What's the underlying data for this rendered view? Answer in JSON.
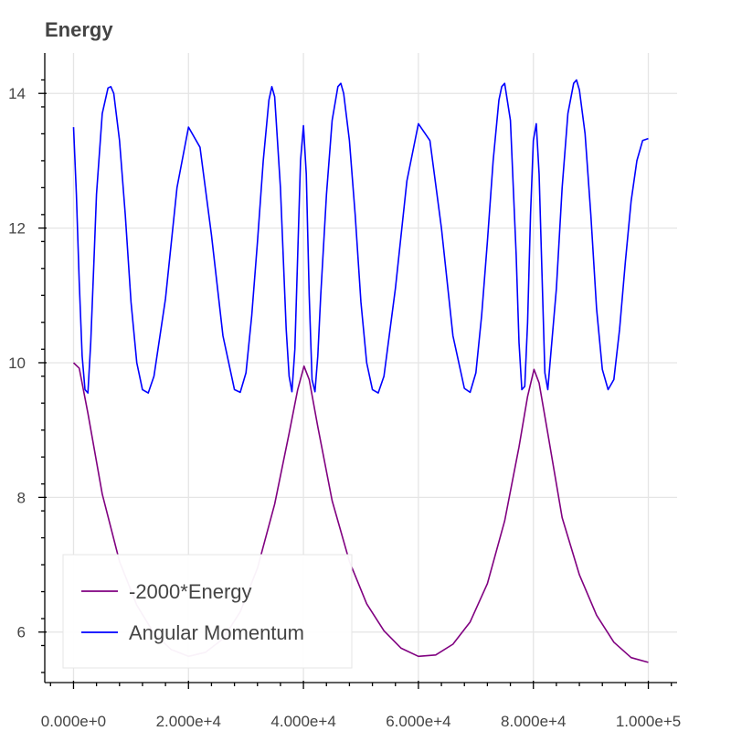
{
  "chart_data": {
    "type": "line",
    "title": "Energy",
    "xlabel": "",
    "ylabel": "",
    "xlim": [
      -5000,
      105000
    ],
    "ylim": [
      5.25,
      14.6
    ],
    "grid": true,
    "legend_placement": "bottom-left",
    "x_ticks": [
      0,
      20000,
      40000,
      60000,
      80000,
      100000
    ],
    "x_tick_labels": [
      "0.000e+0",
      "2.000e+4",
      "4.000e+4",
      "6.000e+4",
      "8.000e+4",
      "1.000e+5"
    ],
    "y_ticks": [
      6,
      8,
      10,
      12,
      14
    ],
    "y_tick_labels": [
      "6",
      "8",
      "10",
      "12",
      "14"
    ],
    "series": [
      {
        "name": "-2000*Energy",
        "color": "#800080",
        "x": [
          0,
          1000,
          2500,
          5000,
          8000,
          11000,
          14000,
          17000,
          20000,
          23000,
          26000,
          29000,
          32000,
          35000,
          37500,
          39000,
          40100,
          41000,
          42500,
          45000,
          48000,
          51000,
          54000,
          57000,
          60000,
          63000,
          66000,
          69000,
          72000,
          75000,
          77500,
          79000,
          80100,
          81000,
          82500,
          85000,
          88000,
          91000,
          94000,
          97000,
          100000
        ],
        "y": [
          10.0,
          9.92,
          9.25,
          8.05,
          7.05,
          6.4,
          5.98,
          5.74,
          5.64,
          5.7,
          5.9,
          6.3,
          6.95,
          7.9,
          8.95,
          9.6,
          9.95,
          9.75,
          9.05,
          7.95,
          7.05,
          6.42,
          6.02,
          5.76,
          5.64,
          5.66,
          5.82,
          6.15,
          6.72,
          7.65,
          8.75,
          9.5,
          9.9,
          9.7,
          8.95,
          7.7,
          6.85,
          6.25,
          5.85,
          5.62,
          5.55
        ]
      },
      {
        "name": "Angular Momentum",
        "color": "#0000ff",
        "x": [
          0,
          500,
          1000,
          1500,
          2000,
          2500,
          3000,
          3500,
          4000,
          5000,
          6000,
          6500,
          7000,
          8000,
          9000,
          10000,
          11000,
          12000,
          13000,
          14000,
          16000,
          18000,
          20000,
          22000,
          24000,
          26000,
          28000,
          29000,
          30000,
          31000,
          32000,
          33000,
          34000,
          34500,
          35000,
          36000,
          37000,
          37500,
          38000,
          38500,
          39000,
          39500,
          40000,
          40500,
          41000,
          41500,
          42000,
          42500,
          43000,
          44000,
          45000,
          46000,
          46500,
          47000,
          48000,
          49000,
          50000,
          51000,
          52000,
          53000,
          54000,
          56000,
          58000,
          60000,
          62000,
          64000,
          66000,
          68000,
          69000,
          70000,
          71000,
          72000,
          73000,
          74000,
          74500,
          75000,
          76000,
          77000,
          77500,
          78000,
          78500,
          79000,
          79500,
          80000,
          80500,
          81000,
          81500,
          82000,
          82500,
          83000,
          84000,
          85000,
          86000,
          87000,
          87500,
          88000,
          89000,
          90000,
          91000,
          92000,
          93000,
          94000,
          95000,
          96000,
          97000,
          98000,
          99000,
          100000
        ],
        "y": [
          13.5,
          12.5,
          11.2,
          10.1,
          9.6,
          9.55,
          10.3,
          11.4,
          12.5,
          13.7,
          14.08,
          14.1,
          14.0,
          13.3,
          12.2,
          10.9,
          10.0,
          9.6,
          9.55,
          9.8,
          10.95,
          12.6,
          13.5,
          13.2,
          11.9,
          10.4,
          9.6,
          9.56,
          9.85,
          10.7,
          11.8,
          13.0,
          13.9,
          14.1,
          13.95,
          12.6,
          10.5,
          9.8,
          9.57,
          10.2,
          11.6,
          13.0,
          13.52,
          12.8,
          11.0,
          9.75,
          9.57,
          10.1,
          11.0,
          12.5,
          13.6,
          14.1,
          14.15,
          14.0,
          13.3,
          12.2,
          10.9,
          10.0,
          9.6,
          9.55,
          9.8,
          11.1,
          12.7,
          13.55,
          13.3,
          12.0,
          10.4,
          9.62,
          9.56,
          9.85,
          10.7,
          11.8,
          13.0,
          13.9,
          14.1,
          14.15,
          13.6,
          11.6,
          10.3,
          9.6,
          9.65,
          10.6,
          12.2,
          13.3,
          13.55,
          12.8,
          11.3,
          9.85,
          9.6,
          10.1,
          11.1,
          12.6,
          13.7,
          14.15,
          14.2,
          14.05,
          13.4,
          12.2,
          10.8,
          9.9,
          9.6,
          9.75,
          10.5,
          11.5,
          12.4,
          13.0,
          13.3,
          13.33
        ]
      }
    ]
  }
}
